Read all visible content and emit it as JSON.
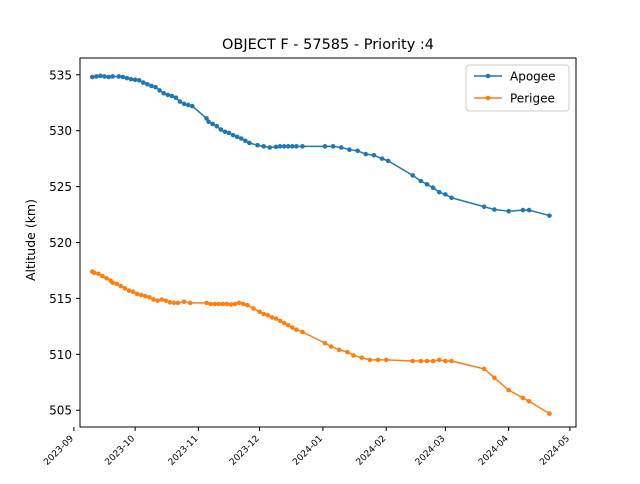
{
  "chart_data": {
    "type": "line",
    "title": "OBJECT F - 57585 - Priority :4",
    "xlabel": "",
    "ylabel": "Altitude (km)",
    "xlim": [
      "2023-09-04",
      "2024-05-04"
    ],
    "ylim": [
      503.5,
      536.5
    ],
    "x_ticks": [
      "2023-09",
      "2023-10",
      "2023-11",
      "2023-12",
      "2024-01",
      "2024-02",
      "2024-03",
      "2024-04",
      "2024-05"
    ],
    "y_ticks": [
      505,
      510,
      515,
      520,
      525,
      530,
      535
    ],
    "grid": false,
    "legend_position": "top-right",
    "series": [
      {
        "name": "Apogee",
        "color": "#1f77b4",
        "marker": "dot",
        "points": [
          [
            "2023-09-10",
            534.8
          ],
          [
            "2023-09-12",
            534.85
          ],
          [
            "2023-09-14",
            534.9
          ],
          [
            "2023-09-16",
            534.85
          ],
          [
            "2023-09-18",
            534.8
          ],
          [
            "2023-09-20",
            534.85
          ],
          [
            "2023-09-23",
            534.85
          ],
          [
            "2023-09-25",
            534.8
          ],
          [
            "2023-09-27",
            534.7
          ],
          [
            "2023-09-29",
            534.6
          ],
          [
            "2023-10-01",
            534.55
          ],
          [
            "2023-10-03",
            534.5
          ],
          [
            "2023-10-05",
            534.3
          ],
          [
            "2023-10-07",
            534.15
          ],
          [
            "2023-10-09",
            534.0
          ],
          [
            "2023-10-11",
            533.9
          ],
          [
            "2023-10-13",
            533.6
          ],
          [
            "2023-10-15",
            533.35
          ],
          [
            "2023-10-17",
            533.2
          ],
          [
            "2023-10-19",
            533.1
          ],
          [
            "2023-10-21",
            532.95
          ],
          [
            "2023-10-23",
            532.6
          ],
          [
            "2023-10-25",
            532.4
          ],
          [
            "2023-10-27",
            532.3
          ],
          [
            "2023-10-29",
            532.2
          ],
          [
            "2023-11-05",
            531.1
          ],
          [
            "2023-11-06",
            530.8
          ],
          [
            "2023-11-08",
            530.6
          ],
          [
            "2023-11-10",
            530.4
          ],
          [
            "2023-11-12",
            530.1
          ],
          [
            "2023-11-14",
            529.9
          ],
          [
            "2023-11-16",
            529.8
          ],
          [
            "2023-11-18",
            529.6
          ],
          [
            "2023-11-20",
            529.45
          ],
          [
            "2023-11-22",
            529.3
          ],
          [
            "2023-11-24",
            529.1
          ],
          [
            "2023-11-26",
            528.9
          ],
          [
            "2023-11-30",
            528.7
          ],
          [
            "2023-12-03",
            528.6
          ],
          [
            "2023-12-06",
            528.5
          ],
          [
            "2023-12-09",
            528.55
          ],
          [
            "2023-12-11",
            528.6
          ],
          [
            "2023-12-13",
            528.6
          ],
          [
            "2023-12-15",
            528.6
          ],
          [
            "2023-12-17",
            528.6
          ],
          [
            "2023-12-19",
            528.6
          ],
          [
            "2023-12-22",
            528.6
          ],
          [
            "2024-01-02",
            528.6
          ],
          [
            "2024-01-06",
            528.6
          ],
          [
            "2024-01-10",
            528.5
          ],
          [
            "2024-01-14",
            528.3
          ],
          [
            "2024-01-18",
            528.2
          ],
          [
            "2024-01-22",
            527.9
          ],
          [
            "2024-01-26",
            527.8
          ],
          [
            "2024-01-30",
            527.5
          ],
          [
            "2024-02-02",
            527.3
          ],
          [
            "2024-02-14",
            526.0
          ],
          [
            "2024-02-18",
            525.5
          ],
          [
            "2024-02-21",
            525.2
          ],
          [
            "2024-02-24",
            524.9
          ],
          [
            "2024-02-27",
            524.5
          ],
          [
            "2024-03-01",
            524.3
          ],
          [
            "2024-03-04",
            524.0
          ],
          [
            "2024-03-20",
            523.2
          ],
          [
            "2024-03-25",
            522.95
          ],
          [
            "2024-04-01",
            522.8
          ],
          [
            "2024-04-08",
            522.9
          ],
          [
            "2024-04-11",
            522.9
          ],
          [
            "2024-04-21",
            522.4
          ]
        ]
      },
      {
        "name": "Perigee",
        "color": "#ff7f0e",
        "marker": "dot",
        "points": [
          [
            "2023-09-10",
            517.4
          ],
          [
            "2023-09-11",
            517.3
          ],
          [
            "2023-09-13",
            517.2
          ],
          [
            "2023-09-15",
            517.0
          ],
          [
            "2023-09-17",
            516.8
          ],
          [
            "2023-09-19",
            516.6
          ],
          [
            "2023-09-20",
            516.4
          ],
          [
            "2023-09-22",
            516.3
          ],
          [
            "2023-09-24",
            516.1
          ],
          [
            "2023-09-26",
            515.9
          ],
          [
            "2023-09-28",
            515.7
          ],
          [
            "2023-09-30",
            515.6
          ],
          [
            "2023-10-02",
            515.4
          ],
          [
            "2023-10-04",
            515.3
          ],
          [
            "2023-10-06",
            515.2
          ],
          [
            "2023-10-08",
            515.1
          ],
          [
            "2023-10-10",
            514.9
          ],
          [
            "2023-10-12",
            514.8
          ],
          [
            "2023-10-14",
            514.9
          ],
          [
            "2023-10-16",
            514.8
          ],
          [
            "2023-10-18",
            514.65
          ],
          [
            "2023-10-20",
            514.6
          ],
          [
            "2023-10-22",
            514.6
          ],
          [
            "2023-10-25",
            514.7
          ],
          [
            "2023-10-28",
            514.6
          ],
          [
            "2023-11-05",
            514.6
          ],
          [
            "2023-11-07",
            514.5
          ],
          [
            "2023-11-09",
            514.5
          ],
          [
            "2023-11-11",
            514.5
          ],
          [
            "2023-11-13",
            514.5
          ],
          [
            "2023-11-15",
            514.5
          ],
          [
            "2023-11-17",
            514.45
          ],
          [
            "2023-11-19",
            514.5
          ],
          [
            "2023-11-21",
            514.6
          ],
          [
            "2023-11-23",
            514.5
          ],
          [
            "2023-11-25",
            514.4
          ],
          [
            "2023-11-28",
            514.1
          ],
          [
            "2023-12-01",
            513.8
          ],
          [
            "2023-12-03",
            513.6
          ],
          [
            "2023-12-05",
            513.5
          ],
          [
            "2023-12-07",
            513.3
          ],
          [
            "2023-12-09",
            513.2
          ],
          [
            "2023-12-11",
            513.0
          ],
          [
            "2023-12-13",
            512.8
          ],
          [
            "2023-12-15",
            512.6
          ],
          [
            "2023-12-17",
            512.4
          ],
          [
            "2023-12-19",
            512.2
          ],
          [
            "2023-12-22",
            512.0
          ],
          [
            "2024-01-02",
            511.0
          ],
          [
            "2024-01-05",
            510.7
          ],
          [
            "2024-01-09",
            510.4
          ],
          [
            "2024-01-13",
            510.2
          ],
          [
            "2024-01-16",
            509.9
          ],
          [
            "2024-01-20",
            509.7
          ],
          [
            "2024-01-24",
            509.5
          ],
          [
            "2024-01-28",
            509.5
          ],
          [
            "2024-02-01",
            509.5
          ],
          [
            "2024-02-14",
            509.4
          ],
          [
            "2024-02-18",
            509.4
          ],
          [
            "2024-02-21",
            509.4
          ],
          [
            "2024-02-24",
            509.4
          ],
          [
            "2024-02-27",
            509.5
          ],
          [
            "2024-03-01",
            509.4
          ],
          [
            "2024-03-04",
            509.4
          ],
          [
            "2024-03-20",
            508.7
          ],
          [
            "2024-03-25",
            507.9
          ],
          [
            "2024-04-01",
            506.8
          ],
          [
            "2024-04-08",
            506.1
          ],
          [
            "2024-04-11",
            505.8
          ],
          [
            "2024-04-21",
            504.7
          ]
        ]
      }
    ]
  }
}
